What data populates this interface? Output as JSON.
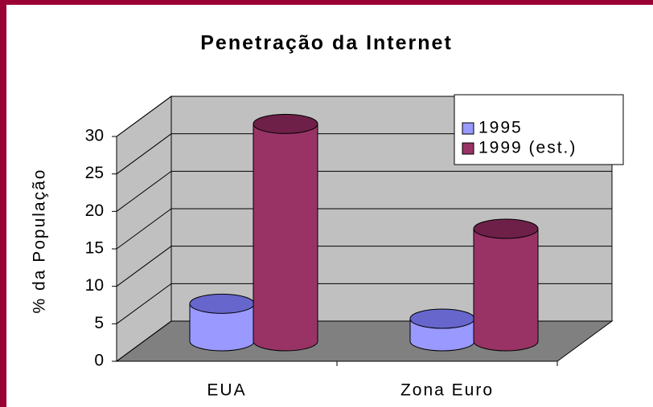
{
  "chart_data": {
    "type": "bar",
    "title": "Penetração da Internet",
    "y_label": "% da População",
    "categories": [
      "EUA",
      "Zona Euro"
    ],
    "series": [
      {
        "name": "1995",
        "color": "#9999ff",
        "top_color": "#6666cc",
        "values": [
          5,
          3
        ]
      },
      {
        "name": "1999 (est.)",
        "color": "#993366",
        "top_color": "#6e2048",
        "values": [
          29,
          15
        ]
      }
    ],
    "ylim": [
      0,
      30
    ],
    "yticks": [
      0,
      5,
      10,
      15,
      20,
      25,
      30
    ],
    "grid": true,
    "legend": "top-right"
  }
}
